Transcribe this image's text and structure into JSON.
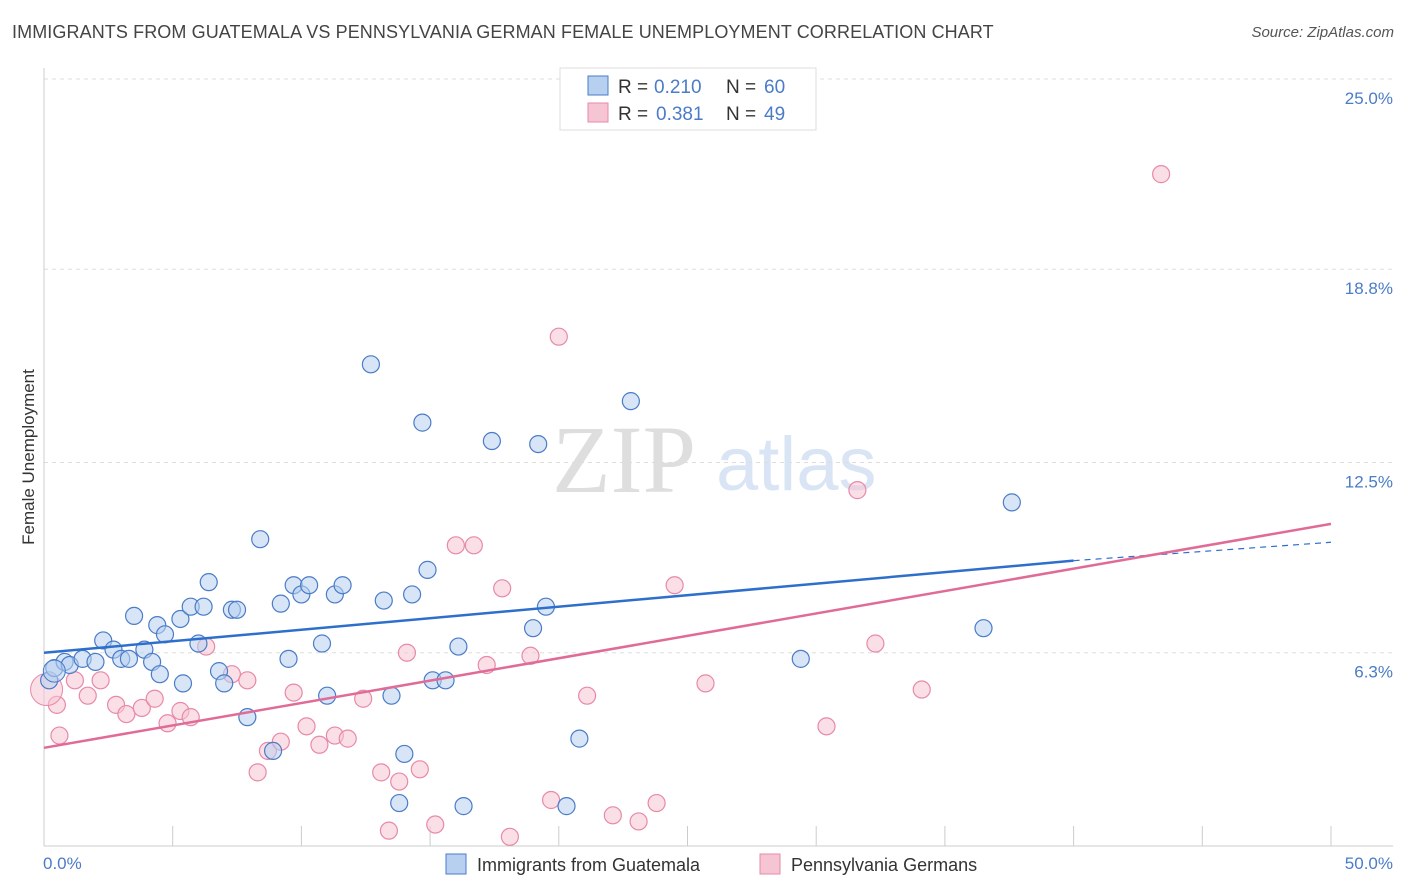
{
  "title": "IMMIGRANTS FROM GUATEMALA VS PENNSYLVANIA GERMAN FEMALE UNEMPLOYMENT CORRELATION CHART",
  "source": "Source: ZipAtlas.com",
  "watermark": {
    "zip": "ZIP",
    "atlas": "atlas"
  },
  "colors": {
    "blue": "#4a7cc7",
    "blue_fill": "#b7d0f0",
    "blue_line": "#2f6fcc",
    "pink_fill": "#f6c5d3",
    "pink_stroke": "#e889a8",
    "pink_line": "#e06b97",
    "grid": "#dddddd"
  },
  "chart_data": {
    "type": "scatter",
    "title": "IMMIGRANTS FROM GUATEMALA VS PENNSYLVANIA GERMAN FEMALE UNEMPLOYMENT CORRELATION CHART",
    "xlabel": "",
    "ylabel": "Female Unemployment",
    "xlim": [
      0,
      50
    ],
    "ylim": [
      0,
      25
    ],
    "x_tick_labels": {
      "min": "0.0%",
      "max": "50.0%"
    },
    "y_ticks": [
      {
        "value": 6.3,
        "label": "6.3%"
      },
      {
        "value": 12.5,
        "label": "12.5%"
      },
      {
        "value": 18.8,
        "label": "18.8%"
      },
      {
        "value": 25.0,
        "label": "25.0%"
      }
    ],
    "legend": {
      "r_label": "R =",
      "n_label": "N =",
      "entries": [
        {
          "r": "0.210",
          "n": "60"
        },
        {
          "r": "0.381",
          "n": "49"
        }
      ]
    },
    "series": [
      {
        "name": "Immigrants from Guatemala",
        "color": "#4a7cc7",
        "trend": {
          "x0": 0,
          "y0": 6.3,
          "x1": 40,
          "y1": 9.3,
          "dash_x1": 50,
          "dash_y1": 9.9
        },
        "points": [
          [
            0.2,
            5.4
          ],
          [
            0.4,
            5.8
          ],
          [
            0.8,
            6.0
          ],
          [
            1.0,
            5.9
          ],
          [
            1.5,
            6.1
          ],
          [
            2.0,
            6.0
          ],
          [
            2.3,
            6.7
          ],
          [
            2.7,
            6.4
          ],
          [
            3.0,
            6.1
          ],
          [
            3.3,
            6.1
          ],
          [
            3.5,
            7.5
          ],
          [
            3.9,
            6.4
          ],
          [
            4.2,
            6.0
          ],
          [
            4.4,
            7.2
          ],
          [
            4.5,
            5.6
          ],
          [
            4.7,
            6.9
          ],
          [
            5.3,
            7.4
          ],
          [
            5.4,
            5.3
          ],
          [
            5.7,
            7.8
          ],
          [
            6.0,
            6.6
          ],
          [
            6.2,
            7.8
          ],
          [
            6.4,
            8.6
          ],
          [
            6.8,
            5.7
          ],
          [
            7.0,
            5.3
          ],
          [
            7.3,
            7.7
          ],
          [
            7.5,
            7.7
          ],
          [
            7.9,
            4.2
          ],
          [
            8.4,
            10.0
          ],
          [
            8.9,
            3.1
          ],
          [
            9.2,
            7.9
          ],
          [
            9.5,
            6.1
          ],
          [
            9.7,
            8.5
          ],
          [
            10.0,
            8.2
          ],
          [
            10.3,
            8.5
          ],
          [
            10.8,
            6.6
          ],
          [
            11.0,
            4.9
          ],
          [
            11.3,
            8.2
          ],
          [
            11.6,
            8.5
          ],
          [
            12.7,
            15.7
          ],
          [
            13.2,
            8.0
          ],
          [
            13.5,
            4.9
          ],
          [
            13.8,
            1.4
          ],
          [
            14.0,
            3.0
          ],
          [
            14.3,
            8.2
          ],
          [
            14.7,
            13.8
          ],
          [
            14.9,
            9.0
          ],
          [
            15.1,
            5.4
          ],
          [
            15.6,
            5.4
          ],
          [
            16.1,
            6.5
          ],
          [
            16.3,
            1.3
          ],
          [
            17.4,
            13.2
          ],
          [
            19.0,
            7.1
          ],
          [
            19.2,
            13.1
          ],
          [
            19.5,
            7.8
          ],
          [
            20.3,
            1.3
          ],
          [
            20.8,
            3.5
          ],
          [
            22.8,
            14.5
          ],
          [
            29.4,
            6.1
          ],
          [
            36.5,
            7.1
          ],
          [
            37.6,
            11.2
          ]
        ]
      },
      {
        "name": "Pennsylvania Germans",
        "color": "#e06b97",
        "trend": {
          "x0": 0,
          "y0": 3.2,
          "x1": 50,
          "y1": 10.5
        },
        "points": [
          [
            0.5,
            4.6
          ],
          [
            1.2,
            5.4
          ],
          [
            1.7,
            4.9
          ],
          [
            2.2,
            5.4
          ],
          [
            2.8,
            4.6
          ],
          [
            3.2,
            4.3
          ],
          [
            3.8,
            4.5
          ],
          [
            4.3,
            4.8
          ],
          [
            4.8,
            4.0
          ],
          [
            5.3,
            4.4
          ],
          [
            5.7,
            4.2
          ],
          [
            6.3,
            6.5
          ],
          [
            7.3,
            5.6
          ],
          [
            7.9,
            5.4
          ],
          [
            8.3,
            2.4
          ],
          [
            8.7,
            3.1
          ],
          [
            9.2,
            3.4
          ],
          [
            9.7,
            5.0
          ],
          [
            10.2,
            3.9
          ],
          [
            10.7,
            3.3
          ],
          [
            11.3,
            3.6
          ],
          [
            11.8,
            3.5
          ],
          [
            12.4,
            4.8
          ],
          [
            13.1,
            2.4
          ],
          [
            13.4,
            0.5
          ],
          [
            13.8,
            2.1
          ],
          [
            14.1,
            6.3
          ],
          [
            14.6,
            2.5
          ],
          [
            15.2,
            0.7
          ],
          [
            16.0,
            9.8
          ],
          [
            16.7,
            9.8
          ],
          [
            17.2,
            5.9
          ],
          [
            17.8,
            8.4
          ],
          [
            18.1,
            0.3
          ],
          [
            18.9,
            6.2
          ],
          [
            19.7,
            1.5
          ],
          [
            20.0,
            16.6
          ],
          [
            21.1,
            4.9
          ],
          [
            22.1,
            1.0
          ],
          [
            23.1,
            0.8
          ],
          [
            23.8,
            1.4
          ],
          [
            24.5,
            8.5
          ],
          [
            25.7,
            5.3
          ],
          [
            30.4,
            3.9
          ],
          [
            31.6,
            11.6
          ],
          [
            32.3,
            6.6
          ],
          [
            34.1,
            5.1
          ],
          [
            43.4,
            21.9
          ],
          [
            0.6,
            3.6
          ]
        ]
      }
    ]
  }
}
